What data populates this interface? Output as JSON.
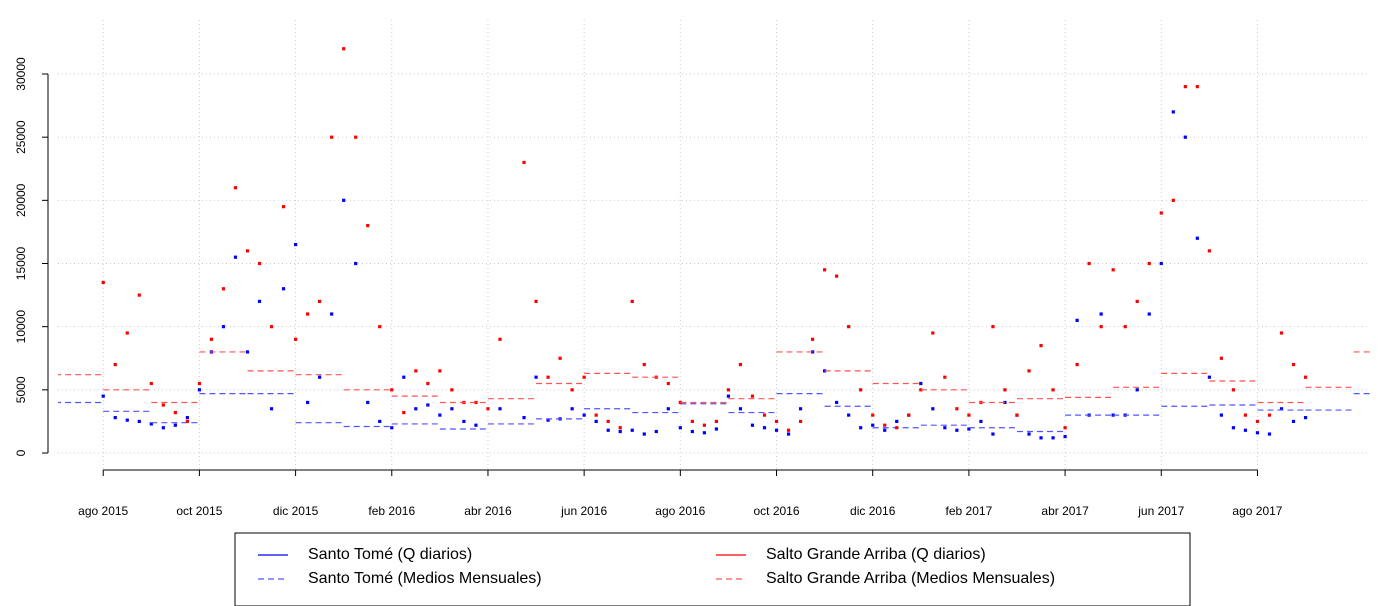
{
  "chart_data": {
    "type": "scatter",
    "xlim": [
      -0.94,
      26.34
    ],
    "ylim": [
      -1346,
      34117
    ],
    "xticks": [
      {
        "value": 0,
        "label": "ago 2015"
      },
      {
        "value": 2,
        "label": "oct 2015"
      },
      {
        "value": 4,
        "label": "dic 2015"
      },
      {
        "value": 6,
        "label": "feb 2016"
      },
      {
        "value": 8,
        "label": "abr 2016"
      },
      {
        "value": 10,
        "label": "jun 2016"
      },
      {
        "value": 12,
        "label": "ago 2016"
      },
      {
        "value": 14,
        "label": "oct 2016"
      },
      {
        "value": 16,
        "label": "dic 2016"
      },
      {
        "value": 18,
        "label": "feb 2017"
      },
      {
        "value": 20,
        "label": "abr 2017"
      },
      {
        "value": 22,
        "label": "jun 2017"
      },
      {
        "value": 24,
        "label": "ago 2017"
      }
    ],
    "yticks": [
      0,
      5000,
      10000,
      15000,
      20000,
      25000,
      30000
    ],
    "grid": true,
    "legend": "bottom",
    "series": [
      {
        "name": "Santo Tomé (Q diarios)",
        "color": "#0000ff",
        "mark": "point",
        "x": [
          0,
          0.25,
          0.5,
          0.75,
          1,
          1.25,
          1.5,
          1.75,
          2,
          2.25,
          2.5,
          2.75,
          3,
          3.25,
          3.5,
          3.75,
          4,
          4.25,
          4.5,
          4.75,
          5,
          5.25,
          5.5,
          5.75,
          6,
          6.25,
          6.5,
          6.75,
          7,
          7.25,
          7.5,
          7.75,
          8,
          8.25,
          8.5,
          8.75,
          9,
          9.25,
          9.5,
          9.75,
          10,
          10.25,
          10.5,
          10.75,
          11,
          11.25,
          11.5,
          11.75,
          12,
          12.25,
          12.5,
          12.75,
          13,
          13.25,
          13.5,
          13.75,
          14,
          14.25,
          14.5,
          14.75,
          15,
          15.25,
          15.5,
          15.75,
          16,
          16.25,
          16.5,
          16.75,
          17,
          17.25,
          17.5,
          17.75,
          18,
          18.25,
          18.5,
          18.75,
          19,
          19.25,
          19.5,
          19.75,
          20,
          20.25,
          20.5,
          20.75,
          21,
          21.25,
          21.5,
          21.75,
          22,
          22.25,
          22.5,
          22.75,
          23,
          23.25,
          23.5,
          23.75,
          24,
          24.25,
          24.5,
          24.75,
          25
        ],
        "values": [
          4500,
          2800,
          2600,
          2500,
          2300,
          2000,
          2200,
          2800,
          5000,
          8000,
          10000,
          15500,
          8000,
          12000,
          3500,
          13000,
          16500,
          4000,
          6000,
          11000,
          20000,
          15000,
          4000,
          2500,
          2000,
          6000,
          3500,
          3800,
          3000,
          3500,
          2500,
          2200,
          null,
          3500,
          null,
          2800,
          6000,
          2600,
          2700,
          3500,
          3000,
          2500,
          1800,
          1700,
          1800,
          1500,
          1700,
          3500,
          2000,
          1700,
          1600,
          1900,
          4500,
          3500,
          2200,
          2000,
          1800,
          1500,
          3500,
          8000,
          6500,
          4000,
          3000,
          2000,
          2200,
          1800,
          2500,
          3000,
          5500,
          3500,
          2000,
          1800,
          1900,
          2500,
          1500,
          4000,
          3000,
          1500,
          1200,
          1200,
          1300,
          10500,
          3000,
          11000,
          3000,
          3000,
          5000,
          11000,
          15000,
          27000,
          25000,
          17000,
          6000,
          3000,
          2000,
          1800,
          1600,
          1500,
          3500,
          2500,
          2800
        ]
      },
      {
        "name": "Santo Tomé (Medios Mensuales)",
        "color": "#5555ff",
        "mark": "step",
        "dashed": true,
        "x": [
          -1,
          0,
          1,
          2,
          3,
          4,
          5,
          6,
          7,
          8,
          9,
          10,
          11,
          12,
          13,
          14,
          15,
          16,
          17,
          18,
          19,
          20,
          21,
          22,
          23,
          24,
          25,
          26
        ],
        "values": [
          4000,
          3300,
          2400,
          4700,
          4700,
          2400,
          2100,
          2300,
          1900,
          2300,
          2700,
          3500,
          3200,
          3900,
          3200,
          4700,
          3700,
          2000,
          2200,
          2000,
          1700,
          3000,
          3000,
          3700,
          3800,
          3400,
          3400,
          4700
        ]
      },
      {
        "name": "Salto Grande Arriba (Q diarios)",
        "color": "#ff0000",
        "mark": "point",
        "x": [
          0,
          0.25,
          0.5,
          0.75,
          1,
          1.25,
          1.5,
          1.75,
          2,
          2.25,
          2.5,
          2.75,
          3,
          3.25,
          3.5,
          3.75,
          4,
          4.25,
          4.5,
          4.75,
          5,
          5.25,
          5.5,
          5.75,
          6,
          6.25,
          6.5,
          6.75,
          7,
          7.25,
          7.5,
          7.75,
          8,
          8.25,
          8.5,
          8.75,
          9,
          9.25,
          9.5,
          9.75,
          10,
          10.25,
          10.5,
          10.75,
          11,
          11.25,
          11.5,
          11.75,
          12,
          12.25,
          12.5,
          12.75,
          13,
          13.25,
          13.5,
          13.75,
          14,
          14.25,
          14.5,
          14.75,
          15,
          15.25,
          15.5,
          15.75,
          16,
          16.25,
          16.5,
          16.75,
          17,
          17.25,
          17.5,
          17.75,
          18,
          18.25,
          18.5,
          18.75,
          19,
          19.25,
          19.5,
          19.75,
          20,
          20.25,
          20.5,
          20.75,
          21,
          21.25,
          21.5,
          21.75,
          22,
          22.25,
          22.5,
          22.75,
          23,
          23.25,
          23.5,
          23.75,
          24,
          24.25,
          24.5,
          24.75,
          25
        ],
        "values": [
          13500,
          7000,
          9500,
          12500,
          5500,
          3800,
          3200,
          2500,
          5500,
          9000,
          13000,
          21000,
          16000,
          15000,
          10000,
          19500,
          9000,
          11000,
          12000,
          25000,
          32000,
          25000,
          18000,
          10000,
          5000,
          3200,
          6500,
          5500,
          6500,
          5000,
          4000,
          4000,
          3500,
          9000,
          null,
          23000,
          12000,
          6000,
          7500,
          5000,
          6000,
          3000,
          2500,
          2000,
          12000,
          7000,
          6000,
          5500,
          4000,
          2500,
          2200,
          2500,
          5000,
          7000,
          4500,
          3000,
          2500,
          1800,
          2500,
          9000,
          14500,
          14000,
          10000,
          5000,
          3000,
          2200,
          2000,
          3000,
          5000,
          9500,
          6000,
          3500,
          3000,
          4000,
          10000,
          5000,
          3000,
          6500,
          8500,
          5000,
          2000,
          7000,
          15000,
          10000,
          14500,
          10000,
          12000,
          15000,
          19000,
          20000,
          29000,
          29000,
          16000,
          7500,
          5000,
          3000,
          2500,
          3000,
          9500,
          7000,
          6000
        ]
      },
      {
        "name": "Salto Grande Arriba (Medios Mensuales)",
        "color": "#ff5555",
        "mark": "step",
        "dashed": true,
        "x": [
          -1,
          0,
          1,
          2,
          3,
          4,
          5,
          6,
          7,
          8,
          9,
          10,
          11,
          12,
          13,
          14,
          15,
          16,
          17,
          18,
          19,
          20,
          21,
          22,
          23,
          24,
          25,
          26
        ],
        "values": [
          6200,
          5000,
          4000,
          8000,
          6500,
          6200,
          5000,
          4500,
          4000,
          4300,
          5500,
          6300,
          6000,
          4000,
          4300,
          8000,
          6500,
          5500,
          5000,
          4000,
          4300,
          4400,
          5200,
          6300,
          5700,
          4000,
          5200,
          8000
        ]
      }
    ]
  }
}
